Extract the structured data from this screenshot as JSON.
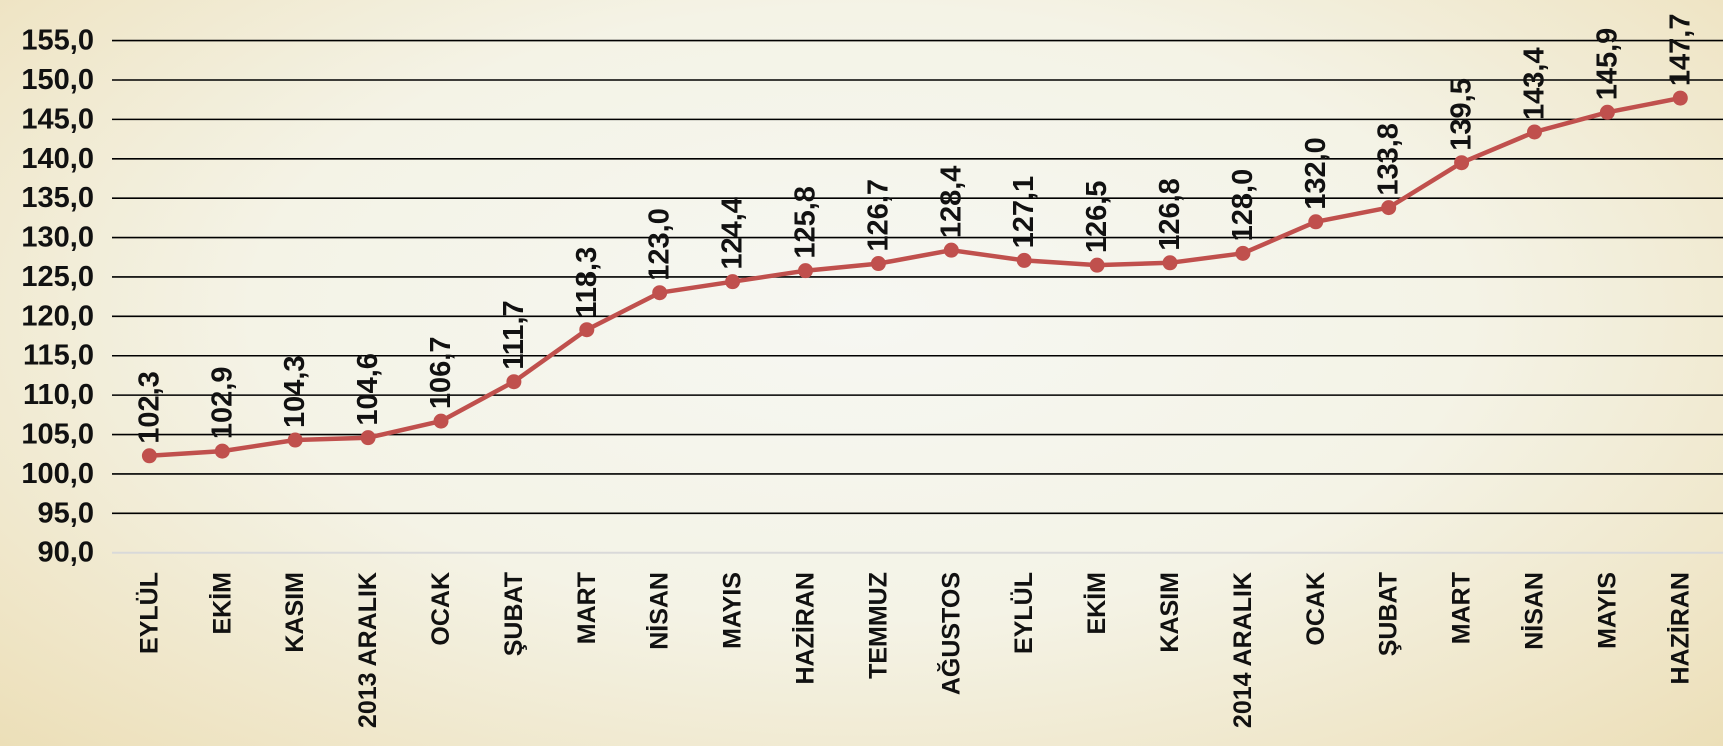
{
  "chart_data": {
    "type": "line",
    "categories": [
      "EYLÜL",
      "EKİM",
      "KASIM",
      "2013 ARALIK",
      "OCAK",
      "ŞUBAT",
      "MART",
      "NİSAN",
      "MAYIS",
      "HAZİRAN",
      "TEMMUZ",
      "AĞUSTOS",
      "EYLÜL",
      "EKİM",
      "KASIM",
      "2014 ARALIK",
      "OCAK",
      "ŞUBAT",
      "MART",
      "NİSAN",
      "MAYIS",
      "HAZİRAN"
    ],
    "series": [
      {
        "values": [
          102.3,
          102.9,
          104.3,
          104.6,
          106.7,
          111.7,
          118.3,
          123.0,
          124.4,
          125.8,
          126.7,
          128.4,
          127.1,
          126.5,
          126.8,
          128.0,
          132.0,
          133.8,
          139.5,
          143.4,
          145.9,
          147.7
        ],
        "labels": [
          "102,3",
          "102,9",
          "104,3",
          "104,6",
          "106,7",
          "111,7",
          "118,3",
          "123,0",
          "124,4",
          "125,8",
          "126,7",
          "128,4",
          "127,1",
          "126,5",
          "126,8",
          "128,0",
          "132,0",
          "133,8",
          "139,5",
          "143,4",
          "145,9",
          "147,7"
        ]
      }
    ],
    "y_ticks": [
      "155,0",
      "150,0",
      "145,0",
      "140,0",
      "135,0",
      "130,0",
      "125,0",
      "120,0",
      "115,0",
      "110,0",
      "105,0",
      "100,0",
      "95,0",
      "90,0"
    ],
    "ylim": [
      90,
      155
    ],
    "y_step": 5,
    "grid": true,
    "legend": "none",
    "title": "",
    "xlabel": "",
    "ylabel": ""
  },
  "colors": {
    "series": "#c0504d",
    "grid": "#000000",
    "axis": "#d9d9d9",
    "text": "#111111"
  }
}
